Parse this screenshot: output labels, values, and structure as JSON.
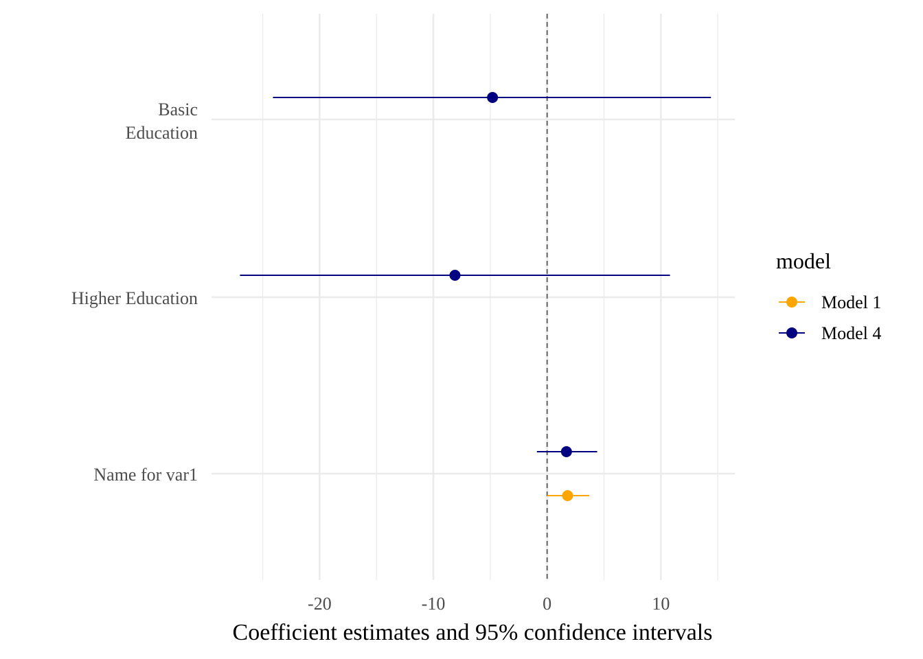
{
  "chart_data": {
    "type": "scatter",
    "subtype": "coefficient-plot",
    "title": "",
    "xlabel": "Coefficient estimates and 95% confidence intervals",
    "ylabel": "",
    "xlim": [
      -29.5,
      16.5
    ],
    "x_ticks": [
      -20,
      -10,
      0,
      10
    ],
    "reference_line": {
      "x": 0,
      "style": "dashed"
    },
    "grid": true,
    "categories": [
      {
        "id": "basic",
        "label_lines": [
          "Basic",
          "Education"
        ]
      },
      {
        "id": "higher",
        "label_lines": [
          "Higher Education"
        ]
      },
      {
        "id": "var1",
        "label_lines": [
          "Name for var1"
        ]
      }
    ],
    "legend": {
      "title": "model",
      "position": "right",
      "entries": [
        "Model 1",
        "Model 4"
      ]
    },
    "series": [
      {
        "name": "Model 1",
        "color": "#FFA500",
        "points": [
          {
            "category": "var1",
            "estimate": 1.8,
            "ci_low": 0.0,
            "ci_high": 3.7
          }
        ]
      },
      {
        "name": "Model 4",
        "color": "#000080",
        "points": [
          {
            "category": "basic",
            "estimate": -4.8,
            "ci_low": -24.1,
            "ci_high": 14.4
          },
          {
            "category": "higher",
            "estimate": -8.1,
            "ci_low": -27.0,
            "ci_high": 10.8
          },
          {
            "category": "var1",
            "estimate": 1.7,
            "ci_low": -0.9,
            "ci_high": 4.4
          }
        ]
      }
    ]
  }
}
